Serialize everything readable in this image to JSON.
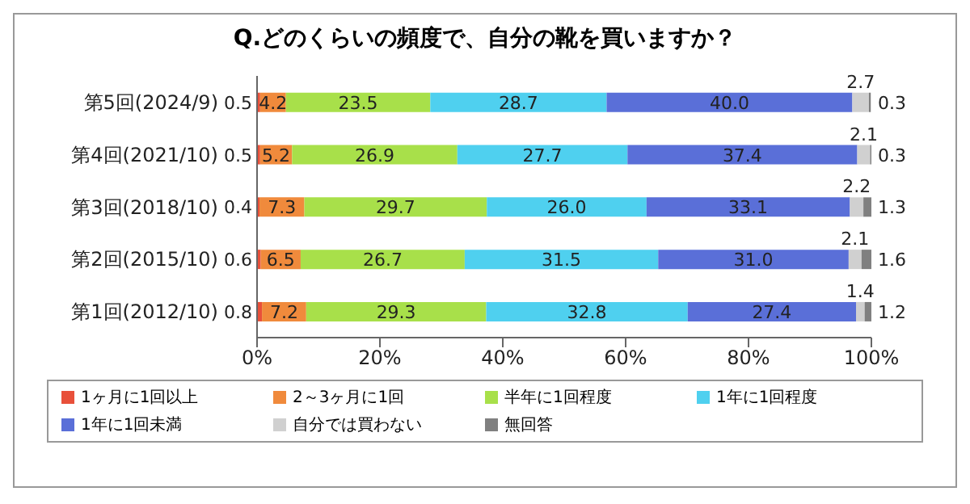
{
  "chart_data": {
    "type": "bar",
    "orientation": "horizontal",
    "stacked": true,
    "title": "Q.どのくらいの頻度で、自分の靴を買いますか？",
    "categories": [
      "第5回(2024/9)",
      "第4回(2021/10)",
      "第3回(2018/10)",
      "第2回(2015/10)",
      "第1回(2012/10)"
    ],
    "xlim": [
      0,
      100
    ],
    "xticks": [
      {
        "value": 0,
        "label": "0%"
      },
      {
        "value": 20,
        "label": "20%"
      },
      {
        "value": 40,
        "label": "40%"
      },
      {
        "value": 60,
        "label": "60%"
      },
      {
        "value": 80,
        "label": "80%"
      },
      {
        "value": 100,
        "label": "100%"
      }
    ],
    "grid": false,
    "legend": "bottom",
    "series": [
      {
        "name": "1ヶ月に1回以上",
        "color": "#e8503a",
        "values": [
          0.5,
          0.5,
          0.4,
          0.6,
          0.8
        ],
        "value_labels": [
          "0.5",
          "0.5",
          "0.4",
          "0.6",
          "0.8"
        ]
      },
      {
        "name": "2～3ヶ月に1回",
        "color": "#f08a3c",
        "values": [
          4.2,
          5.2,
          7.3,
          6.5,
          7.2
        ],
        "value_labels": [
          "4.2",
          "5.2",
          "7.3",
          "6.5",
          "7.2"
        ]
      },
      {
        "name": "半年に1回程度",
        "color": "#a8e04a",
        "values": [
          23.5,
          26.9,
          29.7,
          26.7,
          29.3
        ],
        "value_labels": [
          "23.5",
          "26.9",
          "29.7",
          "26.7",
          "29.3"
        ]
      },
      {
        "name": "1年に1回程度",
        "color": "#4fd0ef",
        "values": [
          28.7,
          27.7,
          26.0,
          31.5,
          32.8
        ],
        "value_labels": [
          "28.7",
          "27.7",
          "26.0",
          "31.5",
          "32.8"
        ]
      },
      {
        "name": "1年に1回未満",
        "color": "#5a6fd8",
        "values": [
          40.0,
          37.4,
          33.1,
          31.0,
          27.4
        ],
        "value_labels": [
          "40.0",
          "37.4",
          "33.1",
          "31.0",
          "27.4"
        ]
      },
      {
        "name": "自分では買わない",
        "color": "#d0d0d0",
        "values": [
          2.7,
          2.1,
          2.2,
          2.1,
          1.4
        ],
        "value_labels": [
          "2.7",
          "2.1",
          "2.2",
          "2.1",
          "1.4"
        ]
      },
      {
        "name": "無回答",
        "color": "#808080",
        "values": [
          0.3,
          0.3,
          1.3,
          1.6,
          1.2
        ],
        "value_labels": [
          "0.3",
          "0.3",
          "1.3",
          "1.6",
          "1.2"
        ]
      }
    ]
  }
}
